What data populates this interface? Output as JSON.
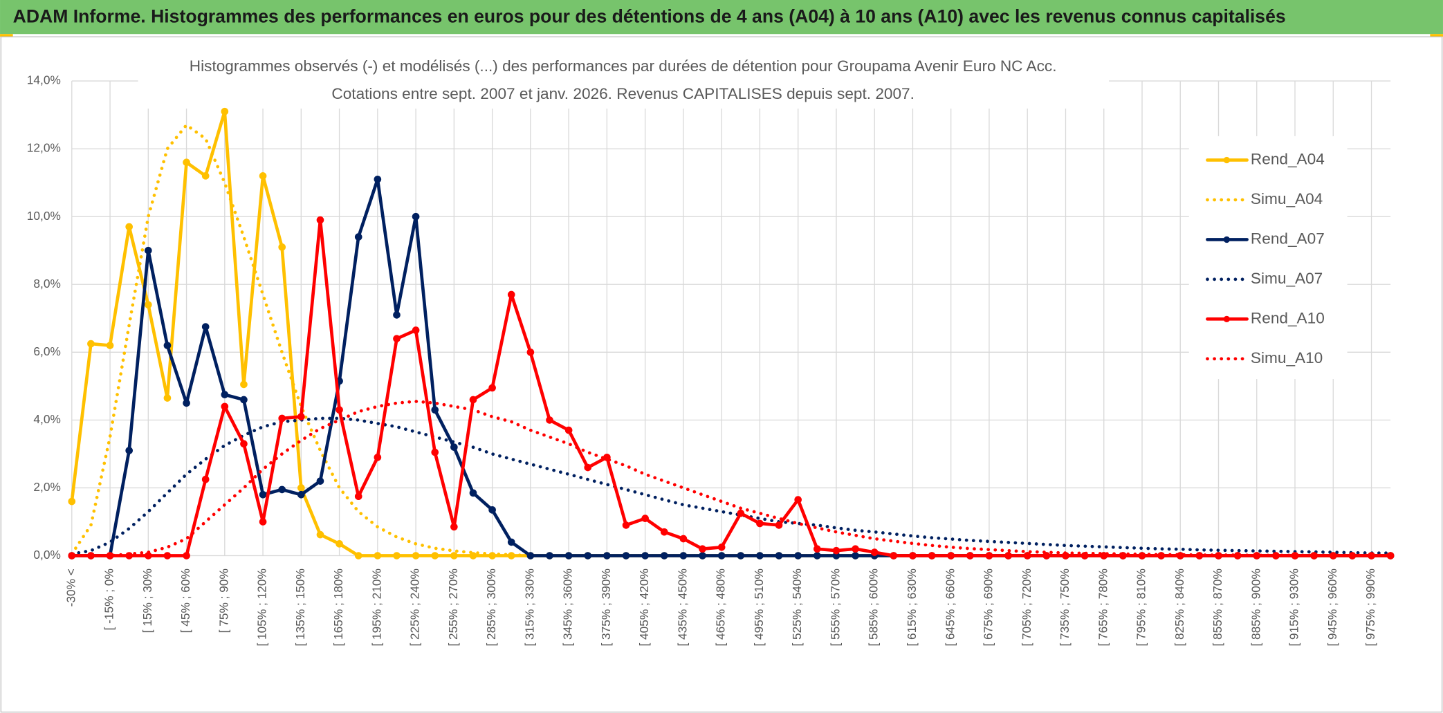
{
  "header": "ADAM Informe. Histogrammes des performances en euros pour des détentions de 4 ans (A04) à 10 ans (A10) avec les revenus connus capitalisés",
  "chart_data": {
    "type": "line",
    "title": "Histogrammes observés (-) et modélisés (...) des performances par durées de détention pour Groupama Avenir Euro NC Acc.",
    "subtitle": "Cotations entre sept. 2007 et janv. 2026. Revenus CAPITALISES depuis sept. 2007.",
    "categories": [
      "-30% <",
      null,
      "[ -15% ; 0%",
      null,
      "[ 15% ; 30%",
      null,
      "[ 45% ; 60%",
      null,
      "[ 75% ; 90%",
      null,
      "[ 105% ; 120%",
      null,
      "[ 135% ; 150%",
      null,
      "[ 165% ; 180%",
      null,
      "[ 195% ; 210%",
      null,
      "[ 225% ; 240%",
      null,
      "[ 255% ; 270%",
      null,
      "[ 285% ; 300%",
      null,
      "[ 315% ; 330%",
      null,
      "[ 345% ; 360%",
      null,
      "[ 375% ; 390%",
      null,
      "[ 405% ; 420%",
      null,
      "[ 435% ; 450%",
      null,
      "[ 465% ; 480%",
      null,
      "[ 495% ; 510%",
      null,
      "[ 525% ; 540%",
      null,
      "[ 555% ; 570%",
      null,
      "[ 585% ; 600%",
      null,
      "[ 615% ; 630%",
      null,
      "[ 645% ; 660%",
      null,
      "[ 675% ; 690%",
      null,
      "[ 705% ; 720%",
      null,
      "[ 735% ; 750%",
      null,
      "[ 765% ; 780%",
      null,
      "[ 795% ; 810%",
      null,
      "[ 825% ; 840%",
      null,
      "[ 855% ; 870%",
      null,
      "[ 885% ; 900%",
      null,
      "[ 915% ; 930%",
      null,
      "[ 945% ; 960%",
      null,
      "[ 975% ; 990%",
      null
    ],
    "series": [
      {
        "name": "Rend_A04",
        "color": "#ffc000",
        "style": "solid",
        "markers": true,
        "values": [
          1.6,
          6.25,
          6.2,
          9.7,
          7.4,
          4.65,
          11.6,
          11.2,
          13.1,
          5.05,
          11.2,
          9.1,
          2.0,
          0.62,
          0.35,
          0,
          0,
          0,
          0,
          0,
          0,
          0,
          0,
          0,
          0,
          0,
          0,
          0,
          0,
          0,
          0,
          0,
          0,
          0,
          0,
          0,
          0,
          0,
          0,
          0,
          0,
          0,
          0,
          0,
          0,
          0,
          0,
          0,
          0,
          0,
          0,
          0,
          0,
          0,
          0,
          0,
          0,
          0,
          0,
          0,
          0,
          0,
          0,
          0,
          0,
          0,
          0,
          0,
          0,
          0
        ]
      },
      {
        "name": "Simu_A04",
        "color": "#ffc000",
        "style": "dotted",
        "markers": false,
        "values": [
          0.05,
          0.9,
          3.5,
          6.8,
          10.0,
          12.0,
          12.7,
          12.3,
          11.0,
          9.4,
          7.7,
          6.0,
          4.4,
          3.1,
          2.0,
          1.3,
          0.85,
          0.55,
          0.35,
          0.22,
          0.14,
          0.09,
          0.05,
          0.03,
          0,
          0,
          0,
          0,
          0,
          0,
          0,
          0,
          0,
          0,
          0,
          0,
          0,
          0,
          0,
          0,
          0,
          0,
          0,
          0,
          0,
          0,
          0,
          0,
          0,
          0,
          0,
          0,
          0,
          0,
          0,
          0,
          0,
          0,
          0,
          0,
          0,
          0,
          0,
          0,
          0,
          0,
          0,
          0,
          0,
          0
        ]
      },
      {
        "name": "Rend_A07",
        "color": "#002060",
        "style": "solid",
        "markers": true,
        "values": [
          0,
          0,
          0,
          3.1,
          9.0,
          6.2,
          4.5,
          6.75,
          4.75,
          4.6,
          1.8,
          1.95,
          1.8,
          2.2,
          5.15,
          9.4,
          11.1,
          7.1,
          10.0,
          4.3,
          3.2,
          1.85,
          1.35,
          0.4,
          0,
          0,
          0,
          0,
          0,
          0,
          0,
          0,
          0,
          0,
          0,
          0,
          0,
          0,
          0,
          0,
          0,
          0,
          0,
          0,
          0,
          0,
          0,
          0,
          0,
          0,
          0,
          0,
          0,
          0,
          0,
          0,
          0,
          0,
          0,
          0,
          0,
          0,
          0,
          0,
          0,
          0,
          0,
          0,
          0,
          0
        ]
      },
      {
        "name": "Simu_A07",
        "color": "#002060",
        "style": "dotted",
        "markers": false,
        "values": [
          0.05,
          0.15,
          0.4,
          0.8,
          1.3,
          1.85,
          2.4,
          2.85,
          3.25,
          3.55,
          3.8,
          3.95,
          4.0,
          4.05,
          4.05,
          4.0,
          3.9,
          3.8,
          3.65,
          3.5,
          3.35,
          3.2,
          3.0,
          2.85,
          2.7,
          2.55,
          2.4,
          2.25,
          2.1,
          1.95,
          1.8,
          1.65,
          1.5,
          1.4,
          1.3,
          1.2,
          1.1,
          1.0,
          0.95,
          0.9,
          0.82,
          0.75,
          0.7,
          0.64,
          0.58,
          0.53,
          0.49,
          0.45,
          0.42,
          0.39,
          0.36,
          0.33,
          0.3,
          0.28,
          0.26,
          0.24,
          0.22,
          0.2,
          0.19,
          0.17,
          0.16,
          0.15,
          0.14,
          0.13,
          0.12,
          0.11,
          0.1,
          0.09,
          0.08,
          0.08
        ]
      },
      {
        "name": "Rend_A10",
        "color": "#ff0000",
        "style": "solid",
        "markers": true,
        "values": [
          0,
          0,
          0,
          0,
          0,
          0,
          0,
          2.25,
          4.4,
          3.3,
          1.0,
          4.05,
          4.1,
          9.9,
          4.3,
          1.75,
          2.9,
          6.4,
          6.65,
          3.05,
          0.85,
          4.6,
          4.95,
          7.7,
          6.0,
          4.0,
          3.7,
          2.6,
          2.9,
          0.9,
          1.1,
          0.7,
          0.5,
          0.2,
          0.25,
          1.25,
          0.95,
          0.9,
          1.65,
          0.2,
          0.15,
          0.2,
          0.1,
          0,
          0,
          0,
          0,
          0,
          0,
          0,
          0,
          0,
          0,
          0,
          0,
          0,
          0,
          0,
          0,
          0,
          0,
          0,
          0,
          0,
          0,
          0,
          0,
          0,
          0,
          0
        ]
      },
      {
        "name": "Simu_A10",
        "color": "#ff0000",
        "style": "dotted",
        "markers": false,
        "values": [
          0,
          0,
          0,
          0.05,
          0.1,
          0.25,
          0.5,
          1.0,
          1.5,
          2.0,
          2.55,
          3.0,
          3.4,
          3.75,
          4.0,
          4.25,
          4.4,
          4.5,
          4.55,
          4.5,
          4.4,
          4.3,
          4.1,
          3.95,
          3.7,
          3.5,
          3.3,
          3.05,
          2.85,
          2.65,
          2.4,
          2.2,
          2.0,
          1.8,
          1.6,
          1.4,
          1.25,
          1.1,
          0.95,
          0.82,
          0.7,
          0.6,
          0.5,
          0.43,
          0.36,
          0.3,
          0.25,
          0.21,
          0.18,
          0.15,
          0.12,
          0.1,
          0.08,
          0.07,
          0.06,
          0.05,
          0.04,
          0.03,
          0.03,
          0.02,
          0.02,
          0.02,
          0.01,
          0.01,
          0.01,
          0.01,
          0.01,
          0.01,
          0.01,
          0.01
        ]
      }
    ],
    "ylim": [
      0,
      14
    ],
    "yticks": [
      {
        "value": 0,
        "label": "0,0%"
      },
      {
        "value": 2,
        "label": "2,0%"
      },
      {
        "value": 4,
        "label": "4,0%"
      },
      {
        "value": 6,
        "label": "6,0%"
      },
      {
        "value": 8,
        "label": "8,0%"
      },
      {
        "value": 10,
        "label": "10,0%"
      },
      {
        "value": 12,
        "label": "12,0%"
      },
      {
        "value": 14,
        "label": "14,0%"
      }
    ],
    "grid": true,
    "legend": "right"
  }
}
